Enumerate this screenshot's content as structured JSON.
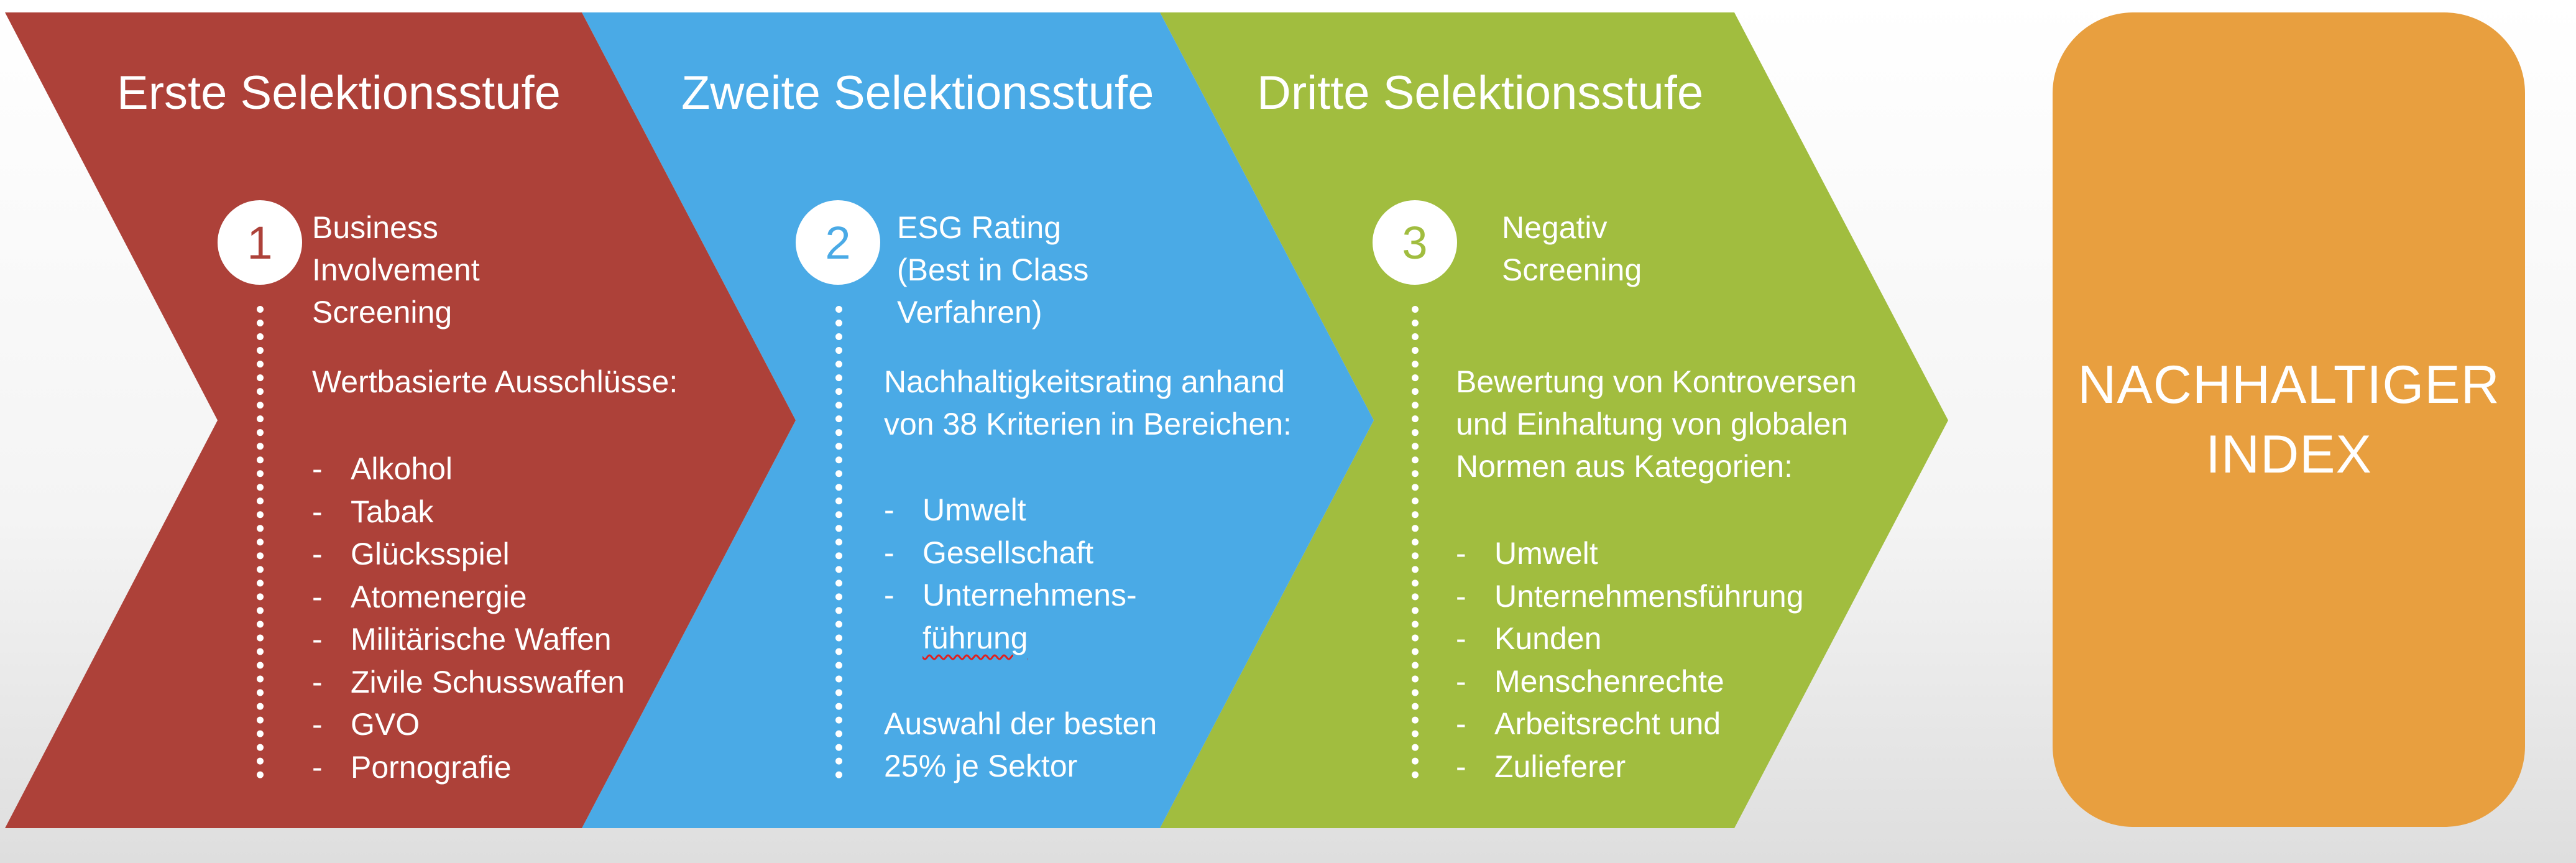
{
  "colors": {
    "stage1": "#ad4139",
    "stage2": "#4aaae6",
    "stage3": "#a1bd3f",
    "index": "#e89f3f",
    "text": "#ffffff"
  },
  "stages": [
    {
      "title": "Erste Selektionsstufe",
      "number": "1",
      "heading_lines": [
        "Business",
        "Involvement",
        "Screening"
      ],
      "body_lines": [
        "Wertbasierte Ausschlüsse:"
      ],
      "list_items": [
        "Alkohol",
        "Tabak",
        "Glücksspiel",
        "Atomenergie",
        "Militärische Waffen",
        "Zivile Schusswaffen",
        "GVO",
        "Pornografie"
      ]
    },
    {
      "title": "Zweite Selektionsstufe",
      "number": "2",
      "heading_lines": [
        "ESG Rating",
        "(Best in Class",
        "Verfahren)"
      ],
      "body_lines": [
        "Nachhaltigkeitsrating anhand",
        "von 38 Kriterien in Bereichen:"
      ],
      "list_items": [
        "Umwelt",
        "Gesellschaft",
        "Unternehmens-"
      ],
      "list_continuation": "führung",
      "footer_lines": [
        "Auswahl der besten",
        "25% je Sektor"
      ]
    },
    {
      "title": "Dritte Selektionsstufe",
      "number": "3",
      "heading_lines": [
        "Negativ",
        "Screening"
      ],
      "body_lines": [
        "Bewertung von Kontroversen",
        "und Einhaltung von globalen",
        "Normen aus Kategorien:"
      ],
      "list_items": [
        "Umwelt",
        "Unternehmensführung",
        "Kunden",
        "Menschenrechte",
        "Arbeitsrecht und",
        "Zulieferer"
      ]
    }
  ],
  "result": {
    "lines": [
      "NACHHALTIGER",
      "INDEX"
    ]
  },
  "list_dash": "-"
}
